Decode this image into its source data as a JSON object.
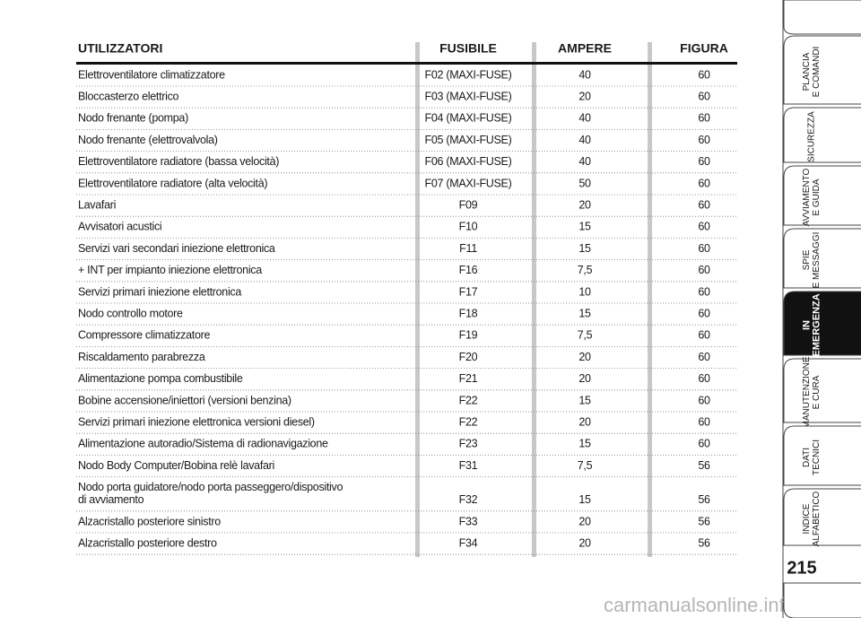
{
  "table": {
    "header": [
      "UTILIZZATORI",
      "FUSIBILE",
      "AMPERE",
      "FIGURA"
    ],
    "rows": [
      [
        "Elettroventilatore climatizzatore",
        "F02 (MAXI-FUSE)",
        "40",
        "60"
      ],
      [
        "Bloccasterzo elettrico",
        "F03 (MAXI-FUSE)",
        "20",
        "60"
      ],
      [
        "Nodo frenante (pompa)",
        "F04 (MAXI-FUSE)",
        "40",
        "60"
      ],
      [
        "Nodo frenante (elettrovalvola)",
        "F05 (MAXI-FUSE)",
        "40",
        "60"
      ],
      [
        "Elettroventilatore radiatore (bassa velocità)",
        "F06 (MAXI-FUSE)",
        "40",
        "60"
      ],
      [
        "Elettroventilatore radiatore (alta velocità)",
        "F07 (MAXI-FUSE)",
        "50",
        "60"
      ],
      [
        "Lavafari",
        "F09",
        "20",
        "60"
      ],
      [
        "Avvisatori acustici",
        "F10",
        "15",
        "60"
      ],
      [
        "Servizi vari secondari iniezione elettronica",
        "F11",
        "15",
        "60"
      ],
      [
        "+ INT per impianto iniezione elettronica",
        "F16",
        "7,5",
        "60"
      ],
      [
        "Servizi primari iniezione elettronica",
        "F17",
        "10",
        "60"
      ],
      [
        "Nodo controllo motore",
        "F18",
        "15",
        "60"
      ],
      [
        "Compressore climatizzatore",
        "F19",
        "7,5",
        "60"
      ],
      [
        "Riscaldamento parabrezza",
        "F20",
        "20",
        "60"
      ],
      [
        "Alimentazione pompa combustibile",
        "F21",
        "20",
        "60"
      ],
      [
        "Bobine accensione/iniettori (versioni benzina)",
        "F22",
        "15",
        "60"
      ],
      [
        "Servizi primari iniezione elettronica versioni diesel)",
        "F22",
        "20",
        "60"
      ],
      [
        "Alimentazione autoradio/Sistema di radionavigazione",
        "F23",
        "15",
        "60"
      ],
      [
        "Nodo Body Computer/Bobina relè lavafari",
        "F31",
        "7,5",
        "56"
      ],
      [
        [
          "Nodo porta guidatore/nodo porta passeggero/dispositivo",
          "di avviamento"
        ],
        "F32",
        "15",
        "56"
      ],
      [
        "Alzacristallo posteriore sinistro",
        "F33",
        "20",
        "56"
      ],
      [
        "Alzacristallo posteriore destro",
        "F34",
        "20",
        "56"
      ]
    ]
  },
  "sidebar": {
    "tabs": [
      [
        "PLANCIA",
        "E COMANDI"
      ],
      [
        "SICUREZZA"
      ],
      [
        "AVVIAMENTO",
        "E GUIDA"
      ],
      [
        "SPIE",
        "E MESSAGGI"
      ],
      [
        "IN",
        "EMERGENZA"
      ],
      [
        "MANUTENZIONE",
        "E CURA"
      ],
      [
        "DATI",
        "TECNICI"
      ],
      [
        "INDICE",
        "ALFABETICO"
      ]
    ],
    "active": 4
  },
  "page_number": "215",
  "watermark": "carmanualsonline.info"
}
